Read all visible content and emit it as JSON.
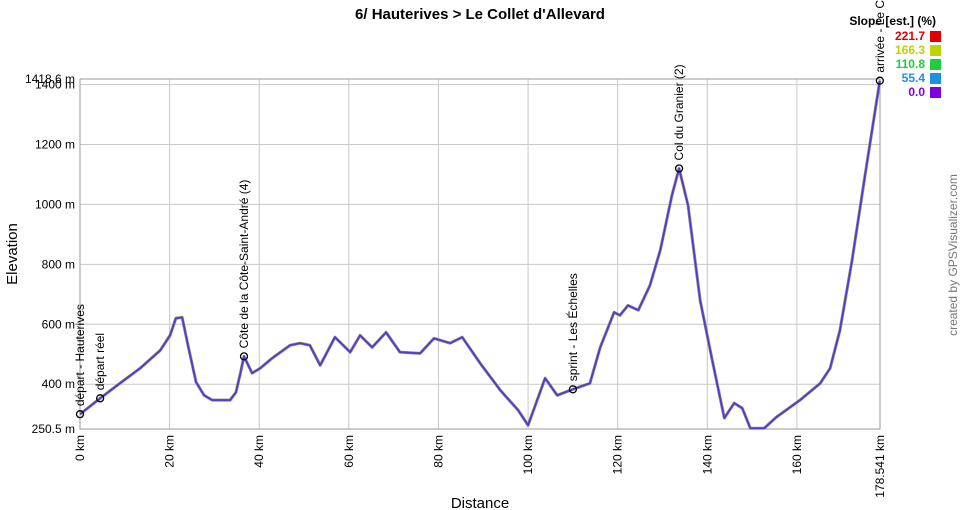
{
  "chart_data": {
    "type": "line",
    "title": "6/ Hauterives > Le Collet d'Allevard",
    "x_label": "Distance",
    "y_label": "Elevation",
    "credit": "created by GPSVisualizer.com",
    "xlim": [
      0,
      178.541
    ],
    "ylim": [
      250.5,
      1418.6
    ],
    "xticks": [
      {
        "value": 0,
        "label": "0 km"
      },
      {
        "value": 20,
        "label": "20 km"
      },
      {
        "value": 40,
        "label": "40 km"
      },
      {
        "value": 60,
        "label": "60 km"
      },
      {
        "value": 80,
        "label": "80 km"
      },
      {
        "value": 100,
        "label": "100 km"
      },
      {
        "value": 120,
        "label": "120 km"
      },
      {
        "value": 140,
        "label": "140 km"
      },
      {
        "value": 160,
        "label": "160 km"
      },
      {
        "value": 178.541,
        "label": "178.541 km"
      }
    ],
    "yticks": [
      {
        "value": 250.5,
        "label": "250.5 m"
      },
      {
        "value": 400,
        "label": "400 m"
      },
      {
        "value": 600,
        "label": "600 m"
      },
      {
        "value": 800,
        "label": "800 m"
      },
      {
        "value": 1000,
        "label": "1000 m"
      },
      {
        "value": 1200,
        "label": "1200 m"
      },
      {
        "value": 1400,
        "label": "1400 m"
      },
      {
        "value": 1418.6,
        "label": "1418.6 m"
      }
    ],
    "grid": true,
    "x": [
      0,
      4.5,
      8.9,
      13.4,
      17.9,
      20.1,
      21.4,
      22.8,
      24.1,
      25.9,
      27.7,
      29.5,
      33.5,
      34.8,
      35.7,
      36.6,
      38.4,
      40.2,
      42.9,
      46.9,
      49.1,
      51.3,
      53.6,
      56.9,
      60.3,
      62.5,
      65.2,
      68.3,
      71.4,
      75.9,
      79,
      82.6,
      85.3,
      89.3,
      93.8,
      97.8,
      100,
      103.8,
      106.5,
      110,
      113.8,
      116.1,
      119.2,
      120.5,
      122.3,
      124.6,
      127.2,
      129.5,
      132.1,
      133.7,
      135.7,
      138.4,
      141.1,
      143.8,
      146,
      147.8,
      149.6,
      152.7,
      155.4,
      160.7,
      165.2,
      167.4,
      169.6,
      172.3,
      175.2,
      178.5
    ],
    "series": [
      {
        "color": "#5533dd",
        "values": [
          300,
          353,
          403,
          453,
          513,
          563,
          620,
          623,
          530,
          407,
          363,
          347,
          347,
          373,
          430,
          493,
          437,
          453,
          487,
          530,
          537,
          530,
          463,
          557,
          507,
          563,
          523,
          573,
          507,
          503,
          553,
          537,
          557,
          470,
          380,
          313,
          263,
          420,
          363,
          383,
          403,
          523,
          640,
          630,
          663,
          647,
          730,
          847,
          1030,
          1120,
          997,
          680,
          480,
          287,
          337,
          320,
          253,
          253,
          290,
          347,
          403,
          453,
          580,
          813,
          1097,
          1413
        ]
      }
    ],
    "waypoints": [
      {
        "name": "départ - Hauterives",
        "x": 0,
        "y": 300
      },
      {
        "name": "départ réel",
        "x": 4.5,
        "y": 353
      },
      {
        "name": "Côte de la Côte-Saint-André (4)",
        "x": 36.6,
        "y": 493
      },
      {
        "name": "sprint - Les Échelles",
        "x": 110,
        "y": 383
      },
      {
        "name": "Col du Granier (2)",
        "x": 133.7,
        "y": 1120
      },
      {
        "name": "arrivée - Le C",
        "x": 178.5,
        "y": 1413
      }
    ],
    "legend": {
      "title": "Slope [est.] (%)",
      "items": [
        {
          "value": 221.7,
          "color": "#e00000"
        },
        {
          "value": 166.3,
          "color": "#c0d000"
        },
        {
          "value": 110.8,
          "color": "#20cc40"
        },
        {
          "value": 55.4,
          "color": "#2090e0"
        },
        {
          "value": 0,
          "label": "0.0",
          "color": "#8000e0"
        }
      ]
    }
  }
}
